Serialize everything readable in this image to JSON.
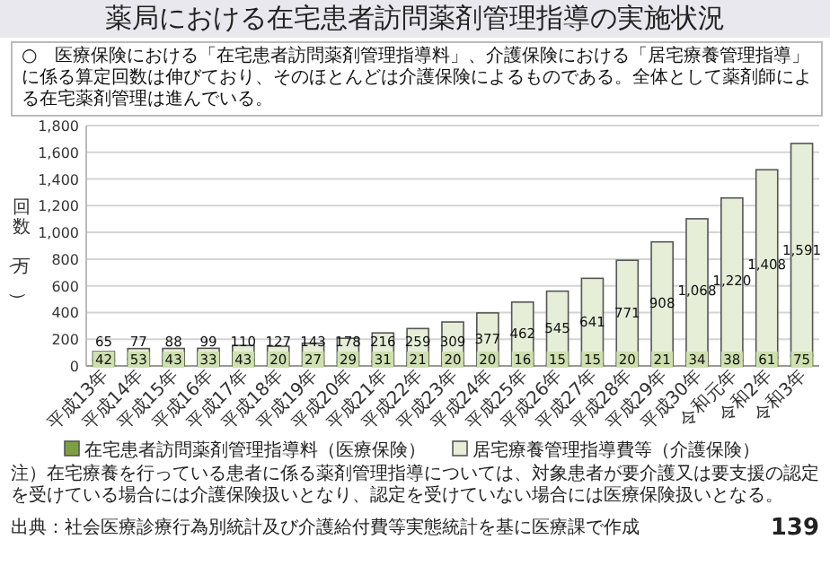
{
  "chart_data": {
    "type": "bar",
    "stacked": true,
    "title": "薬局における在宅患者訪問薬剤管理指導の実施状況",
    "subtitle": "○　医療保険における「在宅患者訪問薬剤管理指導料」、介護保険における「居宅療養管理指導」に係る算定回数は伸びており、そのほとんどは介護保険によるものである。全体として薬剤師による在宅薬剤管理は進んでいる。",
    "ylabel": "回数（万）",
    "categories": [
      "平成13年",
      "平成14年",
      "平成15年",
      "平成16年",
      "平成17年",
      "平成18年",
      "平成19年",
      "平成20年",
      "平成21年",
      "平成22年",
      "平成23年",
      "平成24年",
      "平成25年",
      "平成26年",
      "平成27年",
      "平成28年",
      "平成29年",
      "平成30年",
      "令和元年",
      "令和2年",
      "令和3年"
    ],
    "series": [
      {
        "name": "在宅患者訪問薬剤管理指導料（医療保険）",
        "color": "#7ba23f",
        "values": [
          42,
          53,
          43,
          33,
          43,
          20,
          27,
          29,
          31,
          21,
          20,
          20,
          16,
          15,
          15,
          20,
          21,
          34,
          38,
          61,
          75
        ],
        "value_labels": [
          "42",
          "53",
          "43",
          "33",
          "43",
          "20",
          "27",
          "29",
          "31",
          "21",
          "20",
          "20",
          "16",
          "15",
          "15",
          "20",
          "21",
          "34",
          "38",
          "61",
          "75"
        ]
      },
      {
        "name": "居宅療養管理指導費等（介護保険）",
        "color": "#e6eed8",
        "values": [
          65,
          77,
          88,
          99,
          110,
          127,
          143,
          178,
          216,
          259,
          309,
          377,
          462,
          545,
          641,
          771,
          908,
          1068,
          1220,
          1408,
          1591
        ],
        "value_labels": [
          "65",
          "77",
          "88",
          "99",
          "110",
          "127",
          "143",
          "178",
          "216",
          "259",
          "309",
          "377",
          "462",
          "545",
          "641",
          "771",
          "908",
          "1,068",
          "1,220",
          "1,408",
          "1,591"
        ]
      }
    ],
    "ylim": [
      0,
      1800
    ],
    "yticks": [
      0,
      200,
      400,
      600,
      800,
      {
        "value": 1000,
        "label": "1,000"
      },
      {
        "value": 1200,
        "label": "1,200"
      },
      {
        "value": 1400,
        "label": "1,400"
      },
      {
        "value": 1600,
        "label": "1,600"
      },
      {
        "value": 1800,
        "label": "1,800"
      }
    ],
    "grid": "y",
    "legend": "bottom",
    "annotations": [
      "注）在宅療養を行っている患者に係る薬剤管理指導については、対象患者が要介護又は要支援の認定を受けている場合には介護保険扱いとなり、認定を受けていない場合には医療保険扱いとなる。",
      "出典：社会医療診療行為別統計及び介護給付費等実態統計を基に医療課で作成",
      "139"
    ]
  }
}
